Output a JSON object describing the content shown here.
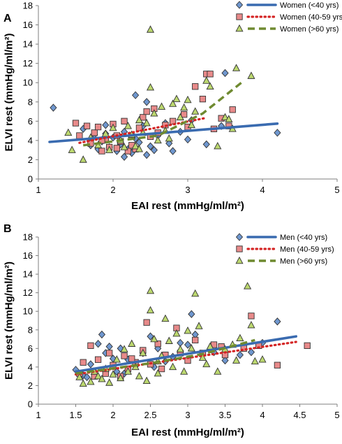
{
  "panels": [
    {
      "letter": "A",
      "xlabel": "EAI rest (mmHg/ml/m²)",
      "ylabel": "ELVI rest (mmHg/ml/m²)"
    },
    {
      "letter": "B",
      "xlabel": "EAI rest (mmHg/ml/m²)",
      "ylabel": "ELVI rest (mmHg/ml/m²)"
    }
  ],
  "colors": {
    "young": "#3a6bb0",
    "young_marker_fill": "#6f97cf",
    "middle": "#d42424",
    "middle_marker_fill": "#e88a8a",
    "old": "#6f8a30",
    "old_marker_fill": "#bcd86f"
  },
  "chart_data": [
    {
      "type": "scatter",
      "panel": "A",
      "xlabel": "EAI rest (mmHg/ml/m²)",
      "ylabel": "ELVI rest (mmHg/ml/m²)",
      "xlim": [
        1,
        5
      ],
      "ylim": [
        0,
        18
      ],
      "xticks": [
        1,
        2,
        3,
        4,
        5
      ],
      "xtick_labels": [
        "1",
        "2",
        "3",
        "4",
        "5"
      ],
      "yticks": [
        0,
        2,
        4,
        6,
        8,
        10,
        12,
        14,
        16,
        18
      ],
      "ytick_labels": [
        "0",
        "2",
        "4",
        "6",
        "8",
        "10",
        "12",
        "14",
        "16",
        "18"
      ],
      "legend_position": "top-right",
      "series": [
        {
          "name": "Women",
          "age_label": "(<40 yrs)",
          "marker": "diamond",
          "color_key": "young",
          "line_style": "solid",
          "trend": [
            [
              1.15,
              3.85
            ],
            [
              4.2,
              5.75
            ]
          ],
          "points": [
            [
              1.2,
              7.4
            ],
            [
              1.6,
              5.2
            ],
            [
              1.7,
              3.5
            ],
            [
              1.75,
              4.6
            ],
            [
              1.8,
              3.1
            ],
            [
              1.85,
              3.9
            ],
            [
              1.9,
              4.7
            ],
            [
              1.95,
              3.3
            ],
            [
              2.0,
              4.3
            ],
            [
              2.05,
              2.9
            ],
            [
              2.1,
              3.6
            ],
            [
              2.15,
              4.9
            ],
            [
              2.2,
              3.1
            ],
            [
              2.25,
              2.7
            ],
            [
              2.3,
              4.2
            ],
            [
              2.35,
              3.8
            ],
            [
              2.4,
              5.5
            ],
            [
              2.45,
              2.5
            ],
            [
              2.5,
              3.4
            ],
            [
              2.3,
              8.7
            ],
            [
              2.45,
              8.0
            ],
            [
              2.6,
              4.5
            ],
            [
              2.7,
              5.8
            ],
            [
              2.75,
              3.7
            ],
            [
              2.8,
              2.9
            ],
            [
              2.9,
              4.9
            ],
            [
              3.0,
              4.1
            ],
            [
              3.05,
              6.1
            ],
            [
              3.25,
              3.6
            ],
            [
              3.45,
              5.5
            ],
            [
              3.5,
              11.0
            ],
            [
              4.2,
              4.8
            ],
            [
              2.15,
              2.3
            ],
            [
              1.9,
              5.6
            ],
            [
              2.55,
              3.0
            ]
          ]
        },
        {
          "name": "Women",
          "age_label": "(40-59 yrs)",
          "marker": "square",
          "color_key": "middle",
          "line_style": "dotted",
          "trend": [
            [
              1.55,
              3.75
            ],
            [
              3.25,
              6.35
            ]
          ],
          "points": [
            [
              1.5,
              5.8
            ],
            [
              1.55,
              4.5
            ],
            [
              1.65,
              5.5
            ],
            [
              1.7,
              3.7
            ],
            [
              1.75,
              4.8
            ],
            [
              1.8,
              5.4
            ],
            [
              1.85,
              2.9
            ],
            [
              1.9,
              4.1
            ],
            [
              1.95,
              3.3
            ],
            [
              2.0,
              5.7
            ],
            [
              2.05,
              4.5
            ],
            [
              2.1,
              3.9
            ],
            [
              2.15,
              6.0
            ],
            [
              2.2,
              2.9
            ],
            [
              2.25,
              4.4
            ],
            [
              2.3,
              3.1
            ],
            [
              2.35,
              5.3
            ],
            [
              2.4,
              6.4
            ],
            [
              2.45,
              7.0
            ],
            [
              2.5,
              4.4
            ],
            [
              2.55,
              7.3
            ],
            [
              2.6,
              4.8
            ],
            [
              2.7,
              5.6
            ],
            [
              2.8,
              6.0
            ],
            [
              2.95,
              6.7
            ],
            [
              3.0,
              5.4
            ],
            [
              3.1,
              9.6
            ],
            [
              3.2,
              8.3
            ],
            [
              3.25,
              10.9
            ],
            [
              3.3,
              10.9
            ],
            [
              3.35,
              5.2
            ],
            [
              3.55,
              5.5
            ],
            [
              3.6,
              7.2
            ],
            [
              3.45,
              6.3
            ],
            [
              1.85,
              4.0
            ],
            [
              2.25,
              3.5
            ],
            [
              2.05,
              3.2
            ]
          ]
        },
        {
          "name": "Women",
          "age_label": "(>60 yrs)",
          "marker": "triangle",
          "color_key": "old",
          "line_style": "dashed",
          "trend": [
            [
              1.6,
              3.5
            ],
            [
              2.6,
              4.5
            ],
            [
              3.2,
              6.8
            ],
            [
              3.75,
              10.2
            ]
          ],
          "points": [
            [
              1.4,
              4.8
            ],
            [
              1.45,
              3.0
            ],
            [
              1.6,
              2.0
            ],
            [
              1.7,
              4.3
            ],
            [
              1.8,
              3.5
            ],
            [
              1.9,
              4.7
            ],
            [
              1.95,
              3.0
            ],
            [
              2.0,
              5.3
            ],
            [
              2.1,
              4.0
            ],
            [
              2.15,
              3.3
            ],
            [
              2.2,
              5.5
            ],
            [
              2.25,
              4.6
            ],
            [
              2.3,
              3.4
            ],
            [
              2.35,
              6.1
            ],
            [
              2.4,
              4.8
            ],
            [
              2.45,
              5.8
            ],
            [
              2.5,
              15.5
            ],
            [
              2.5,
              9.5
            ],
            [
              2.55,
              6.8
            ],
            [
              2.6,
              4.0
            ],
            [
              2.65,
              7.5
            ],
            [
              2.7,
              5.0
            ],
            [
              2.8,
              7.8
            ],
            [
              2.85,
              8.3
            ],
            [
              2.9,
              6.4
            ],
            [
              2.95,
              7.4
            ],
            [
              3.0,
              8.2
            ],
            [
              3.05,
              5.6
            ],
            [
              3.1,
              7.0
            ],
            [
              3.25,
              10.2
            ],
            [
              3.3,
              9.6
            ],
            [
              3.4,
              3.4
            ],
            [
              3.5,
              6.4
            ],
            [
              3.55,
              6.2
            ],
            [
              3.6,
              5.2
            ],
            [
              3.65,
              11.5
            ],
            [
              3.85,
              10.7
            ],
            [
              2.75,
              4.2
            ],
            [
              2.35,
              3.1
            ]
          ]
        }
      ]
    },
    {
      "type": "scatter",
      "panel": "B",
      "xlabel": "EAI rest (mmHg/ml/m²)",
      "ylabel": "ELVI rest (mmHg/ml/m²)",
      "xlim": [
        1,
        5
      ],
      "ylim": [
        0,
        18
      ],
      "xticks": [
        1,
        1.5,
        2,
        2.5,
        3,
        3.5,
        4,
        4.5,
        5
      ],
      "xtick_labels": [
        "1",
        "1.5",
        "2",
        "2.5",
        "3",
        "3.5",
        "4",
        "4.5",
        "5"
      ],
      "yticks": [
        0,
        2,
        4,
        6,
        8,
        10,
        12,
        14,
        16,
        18
      ],
      "ytick_labels": [
        "0",
        "2",
        "4",
        "6",
        "8",
        "10",
        "12",
        "14",
        "16",
        "18"
      ],
      "legend_position": "top-right",
      "series": [
        {
          "name": "Men",
          "age_label": "(<40 yrs)",
          "marker": "diamond",
          "color_key": "young",
          "line_style": "solid",
          "trend": [
            [
              1.5,
              3.5
            ],
            [
              4.45,
              7.3
            ]
          ],
          "points": [
            [
              1.5,
              3.7
            ],
            [
              1.6,
              3.1
            ],
            [
              1.7,
              4.3
            ],
            [
              1.75,
              3.5
            ],
            [
              1.8,
              6.5
            ],
            [
              1.85,
              7.5
            ],
            [
              1.9,
              5.5
            ],
            [
              1.95,
              6.2
            ],
            [
              2.0,
              4.9
            ],
            [
              2.05,
              3.5
            ],
            [
              2.1,
              6.0
            ],
            [
              2.2,
              4.8
            ],
            [
              2.3,
              4.1
            ],
            [
              2.4,
              5.5
            ],
            [
              2.5,
              7.3
            ],
            [
              2.6,
              6.0
            ],
            [
              2.7,
              4.6
            ],
            [
              2.8,
              5.1
            ],
            [
              2.9,
              6.6
            ],
            [
              3.0,
              6.4
            ],
            [
              3.05,
              9.7
            ],
            [
              3.1,
              7.5
            ],
            [
              3.2,
              5.4
            ],
            [
              3.35,
              5.6
            ],
            [
              3.5,
              4.7
            ],
            [
              3.7,
              5.3
            ],
            [
              3.85,
              5.6
            ],
            [
              4.0,
              6.6
            ],
            [
              4.2,
              8.9
            ],
            [
              1.65,
              2.9
            ],
            [
              2.15,
              3.3
            ],
            [
              2.55,
              4.0
            ]
          ]
        },
        {
          "name": "Men",
          "age_label": "(40-59 yrs)",
          "marker": "square",
          "color_key": "middle",
          "line_style": "dotted",
          "trend": [
            [
              1.5,
              3.2
            ],
            [
              4.45,
              6.7
            ]
          ],
          "points": [
            [
              1.55,
              3.3
            ],
            [
              1.6,
              4.5
            ],
            [
              1.7,
              6.3
            ],
            [
              1.8,
              4.8
            ],
            [
              1.9,
              3.3
            ],
            [
              1.95,
              5.5
            ],
            [
              2.0,
              4.2
            ],
            [
              2.1,
              3.0
            ],
            [
              2.15,
              5.2
            ],
            [
              2.2,
              3.8
            ],
            [
              2.3,
              4.5
            ],
            [
              2.4,
              5.8
            ],
            [
              2.45,
              8.8
            ],
            [
              2.5,
              4.3
            ],
            [
              2.6,
              6.5
            ],
            [
              2.7,
              5.3
            ],
            [
              2.85,
              8.2
            ],
            [
              2.9,
              5.5
            ],
            [
              3.0,
              4.7
            ],
            [
              3.1,
              6.9
            ],
            [
              3.2,
              5.5
            ],
            [
              3.35,
              6.4
            ],
            [
              3.45,
              6.2
            ],
            [
              3.5,
              5.3
            ],
            [
              3.75,
              6.0
            ],
            [
              3.85,
              9.5
            ],
            [
              3.95,
              6.3
            ],
            [
              4.2,
              4.2
            ],
            [
              4.6,
              6.3
            ],
            [
              1.75,
              3.0
            ],
            [
              2.25,
              4.9
            ],
            [
              2.65,
              3.8
            ]
          ]
        },
        {
          "name": "Men",
          "age_label": "(>60 yrs)",
          "marker": "triangle",
          "color_key": "old",
          "line_style": "dashed",
          "trend": [
            [
              1.5,
              3.3
            ],
            [
              2.5,
              4.4
            ],
            [
              3.2,
              5.4
            ],
            [
              3.9,
              6.9
            ]
          ],
          "points": [
            [
              1.55,
              2.9
            ],
            [
              1.6,
              2.2
            ],
            [
              1.7,
              2.4
            ],
            [
              1.75,
              3.5
            ],
            [
              1.8,
              3.0
            ],
            [
              1.85,
              2.7
            ],
            [
              1.9,
              3.8
            ],
            [
              1.95,
              2.3
            ],
            [
              2.0,
              3.2
            ],
            [
              2.05,
              4.8
            ],
            [
              2.1,
              2.8
            ],
            [
              2.2,
              3.5
            ],
            [
              2.25,
              6.5
            ],
            [
              2.3,
              4.0
            ],
            [
              2.35,
              3.0
            ],
            [
              2.4,
              5.5
            ],
            [
              2.45,
              2.5
            ],
            [
              2.5,
              12.2
            ],
            [
              2.5,
              10.1
            ],
            [
              2.55,
              7.0
            ],
            [
              2.6,
              4.6
            ],
            [
              2.65,
              5.2
            ],
            [
              2.7,
              9.2
            ],
            [
              2.75,
              6.8
            ],
            [
              2.8,
              4.0
            ],
            [
              2.85,
              7.6
            ],
            [
              2.9,
              5.9
            ],
            [
              2.95,
              3.5
            ],
            [
              3.0,
              7.9
            ],
            [
              3.05,
              6.0
            ],
            [
              3.1,
              11.9
            ],
            [
              3.15,
              8.4
            ],
            [
              3.2,
              5.0
            ],
            [
              3.25,
              4.3
            ],
            [
              3.3,
              6.2
            ],
            [
              3.4,
              3.5
            ],
            [
              3.5,
              5.9
            ],
            [
              3.6,
              6.4
            ],
            [
              3.65,
              4.7
            ],
            [
              3.7,
              7.1
            ],
            [
              3.8,
              12.7
            ],
            [
              3.85,
              8.5
            ],
            [
              3.9,
              4.6
            ],
            [
              4.0,
              4.8
            ],
            [
              2.15,
              5.9
            ],
            [
              2.6,
              3.3
            ]
          ]
        }
      ]
    }
  ]
}
